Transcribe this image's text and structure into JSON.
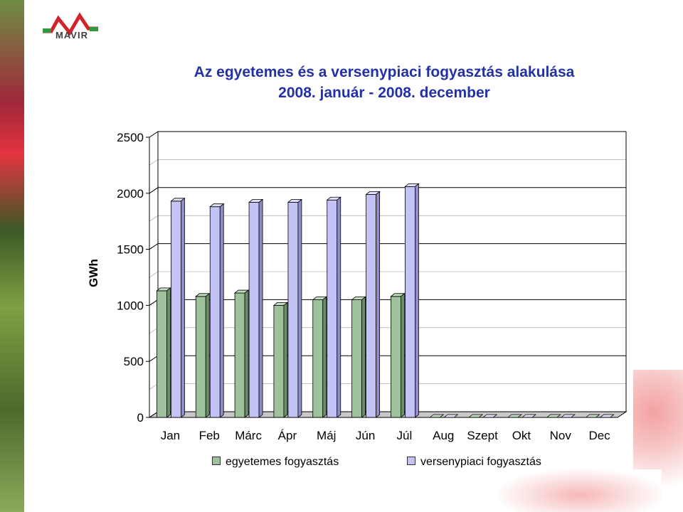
{
  "logo": {
    "text": "MAVIR",
    "icon": "mavir-logo-icon"
  },
  "title_lines": [
    "Az egyetemes és a versenypiaci fogyasztás alakulása",
    "2008. január - 2008. december"
  ],
  "colors": {
    "series0": "#9fc29c",
    "series1": "#c4c3f5",
    "title": "#2431a6"
  },
  "chart_data": {
    "type": "bar",
    "title": "Az egyetemes és a versenypiaci fogyasztás alakulása 2008. január - 2008. december",
    "ylabel": "GWh",
    "xlabel": "",
    "ylim": [
      0,
      2500
    ],
    "yticks": [
      0,
      500,
      1000,
      1500,
      2000,
      2500
    ],
    "grid": true,
    "legend_position": "bottom",
    "categories": [
      "Jan",
      "Feb",
      "Márc",
      "Ápr",
      "Máj",
      "Jún",
      "Júl",
      "Aug",
      "Szept",
      "Okt",
      "Nov",
      "Dec"
    ],
    "series": [
      {
        "name": "egyetemes fogyasztás",
        "values": [
          1130,
          1080,
          1110,
          1000,
          1050,
          1050,
          1080,
          0,
          0,
          0,
          0,
          0
        ]
      },
      {
        "name": "versenypiaci fogyasztás",
        "values": [
          1930,
          1880,
          1920,
          1920,
          1940,
          1990,
          2060,
          0,
          0,
          0,
          0,
          0
        ]
      }
    ]
  }
}
